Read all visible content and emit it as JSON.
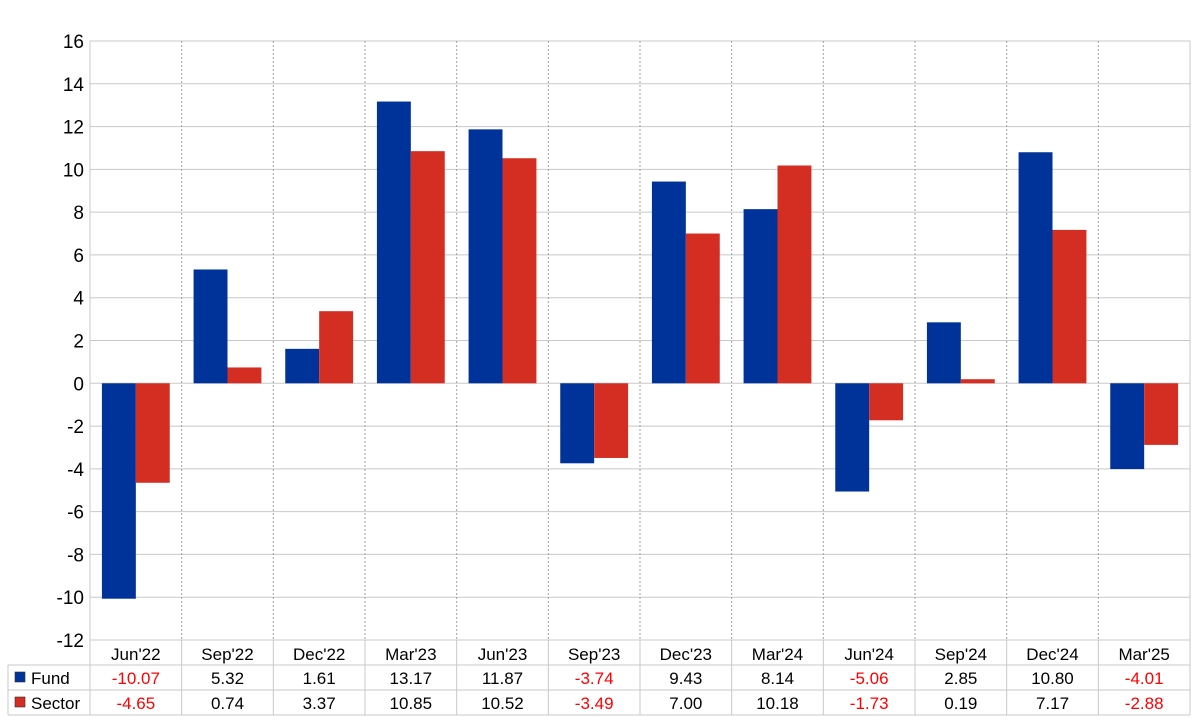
{
  "chart_data": {
    "type": "bar",
    "categories": [
      "Jun'22",
      "Sep'22",
      "Dec'22",
      "Mar'23",
      "Jun'23",
      "Sep'23",
      "Dec'23",
      "Mar'24",
      "Jun'24",
      "Sep'24",
      "Dec'24",
      "Mar'25"
    ],
    "series": [
      {
        "name": "Fund",
        "color": "#003399",
        "values": [
          -10.07,
          5.32,
          1.61,
          13.17,
          11.87,
          -3.74,
          9.43,
          8.14,
          -5.06,
          2.85,
          10.8,
          -4.01
        ],
        "labels": [
          "-10.07",
          "5.32",
          "1.61",
          "13.17",
          "11.87",
          "-3.74",
          "9.43",
          "8.14",
          "-5.06",
          "2.85",
          "10.80",
          "-4.01"
        ]
      },
      {
        "name": "Sector",
        "color": "#d42d22",
        "values": [
          -4.65,
          0.74,
          3.37,
          10.85,
          10.52,
          -3.49,
          7.0,
          10.18,
          -1.73,
          0.19,
          7.17,
          -2.88
        ],
        "labels": [
          "-4.65",
          "0.74",
          "3.37",
          "10.85",
          "10.52",
          "-3.49",
          "7.00",
          "10.18",
          "-1.73",
          "0.19",
          "7.17",
          "-2.88"
        ]
      }
    ],
    "ylim": [
      -12,
      16
    ],
    "yticks": [
      "16",
      "14",
      "12",
      "10",
      "8",
      "6",
      "4",
      "2",
      "0",
      "-2",
      "-4",
      "-6",
      "-8",
      "-10",
      "-12"
    ],
    "ytick_values": [
      16,
      14,
      12,
      10,
      8,
      6,
      4,
      2,
      0,
      -2,
      -4,
      -6,
      -8,
      -10,
      -12
    ],
    "grid": true,
    "legend": "data-table-below",
    "negative_label_color": "#ff0000",
    "positive_label_color": "#000000"
  }
}
